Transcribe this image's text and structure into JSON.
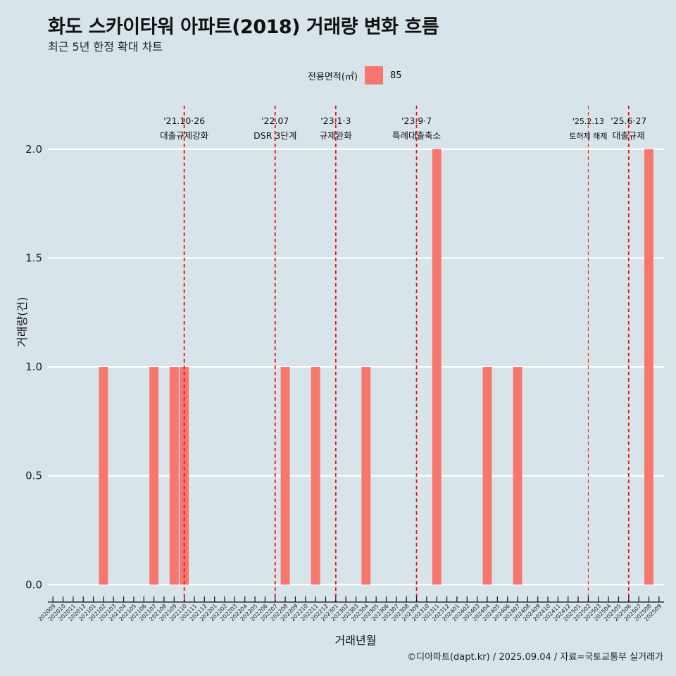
{
  "title": "화도 스카이타워 아파트(2018) 거래량 변화 흐름",
  "subtitle": "최근 5년 한정 확대 차트",
  "caption": "©디아파트(dapt.kr) / 2025.09.04 / 자료=국토교통부 실거래가",
  "legend": {
    "title": "전용면적(㎡)",
    "label": "85",
    "color": "#f8766d"
  },
  "chart_data": {
    "type": "bar",
    "xlabel": "거래년월",
    "ylabel": "거래량(건)",
    "ylim": [
      -0.08,
      2.2
    ],
    "yticks": [
      0.0,
      0.5,
      1.0,
      1.5,
      2.0
    ],
    "ytick_labels": [
      "0.0",
      "0.5",
      "1.0",
      "1.5",
      "2.0"
    ],
    "categories": [
      "202009",
      "202010",
      "202011",
      "202012",
      "202101",
      "202102",
      "202103",
      "202104",
      "202105",
      "202106",
      "202107",
      "202108",
      "202109",
      "202110",
      "202111",
      "202112",
      "202201",
      "202202",
      "202203",
      "202204",
      "202205",
      "202206",
      "202207",
      "202208",
      "202209",
      "202210",
      "202211",
      "202212",
      "202301",
      "202302",
      "202303",
      "202304",
      "202305",
      "202306",
      "202307",
      "202308",
      "202309",
      "202310",
      "202311",
      "202312",
      "202401",
      "202402",
      "202403",
      "202404",
      "202405",
      "202406",
      "202407",
      "202408",
      "202409",
      "202410",
      "202411",
      "202412",
      "202501",
      "202502",
      "202503",
      "202504",
      "202505",
      "202506",
      "202507",
      "202508",
      "202509"
    ],
    "series": [
      {
        "name": "85",
        "color": "#f8766d",
        "values": [
          0,
          0,
          0,
          0,
          0,
          1,
          0,
          0,
          0,
          0,
          1,
          0,
          1,
          1,
          0,
          0,
          0,
          0,
          0,
          0,
          0,
          0,
          0,
          1,
          0,
          0,
          1,
          0,
          0,
          0,
          0,
          1,
          0,
          0,
          0,
          0,
          0,
          0,
          2,
          0,
          0,
          0,
          0,
          1,
          0,
          0,
          1,
          0,
          0,
          0,
          0,
          0,
          0,
          0,
          0,
          0,
          0,
          0,
          0,
          2,
          0
        ]
      }
    ],
    "annotations": [
      {
        "position": 13.0,
        "line1": "'21.10·26",
        "line2": "대출규제강화",
        "style": "bold"
      },
      {
        "position": 22.0,
        "line1": "'22.07",
        "line2": "DSR 3단계",
        "style": "bold"
      },
      {
        "position": 28.0,
        "line1": "'23.1·3",
        "line2": "규제완화",
        "style": "bold"
      },
      {
        "position": 36.0,
        "line1": "'23.9·7",
        "line2": "특례대출축소",
        "style": "bold"
      },
      {
        "position": 53.0,
        "line1": "'25.2.13",
        "line2": "토허제 해제",
        "style": "thin"
      },
      {
        "position": 57.0,
        "line1": "'25.6·27",
        "line2": "대출규제",
        "style": "bold"
      }
    ]
  }
}
